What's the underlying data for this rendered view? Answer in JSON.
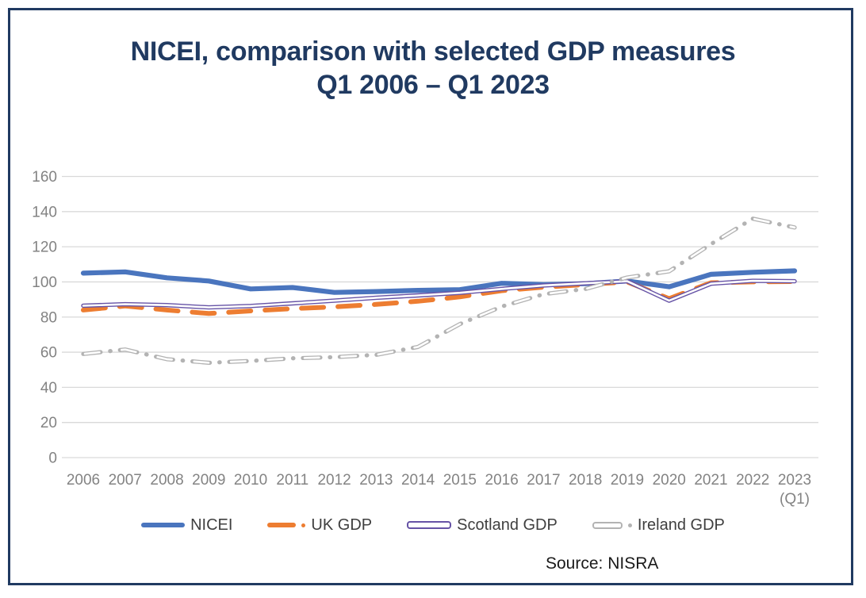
{
  "frame": {
    "title_line1": "NICEI, comparison with selected GDP measures",
    "title_line2": "Q1 2006 – Q1 2023",
    "source": "Source: NISRA"
  },
  "colors": {
    "border_navy": "#203A61",
    "title_navy": "#203A61",
    "gridline": "#D9D9D9",
    "axis_text": "#838383",
    "legend_text": "#3F3F3F",
    "nicei_blue": "#4A75BE",
    "uk_orange": "#ED7D31",
    "scotland_purple": "#6653A6",
    "ireland_gray": "#B3B3B3"
  },
  "chart_data": {
    "type": "line",
    "title": "NICEI, comparison with selected GDP measures Q1 2006 – Q1 2023",
    "xlabel": "",
    "ylabel": "",
    "x": [
      "2006",
      "2007",
      "2008",
      "2009",
      "2010",
      "2011",
      "2012",
      "2013",
      "2014",
      "2015",
      "2016",
      "2017",
      "2018",
      "2019",
      "2020",
      "2021",
      "2022",
      "2023"
    ],
    "x_last_suffix": "(Q1)",
    "ylim": [
      0,
      160
    ],
    "y_tick_step": 20,
    "grid": "horizontal",
    "legend_position": "bottom",
    "series": [
      {
        "name": "NICEI",
        "style": "solid-thick",
        "color": "#4A75BE",
        "values": [
          105,
          105.7,
          102.3,
          100.5,
          96,
          96.8,
          94,
          94.5,
          95.2,
          95.6,
          99.2,
          98.5,
          99,
          100.5,
          97.2,
          104.3,
          105.5,
          106.3
        ]
      },
      {
        "name": "UK GDP",
        "style": "dash",
        "color": "#ED7D31",
        "values": [
          84,
          86.3,
          84,
          82,
          83.5,
          84.8,
          85.8,
          87.2,
          89,
          91.5,
          95,
          97,
          98.5,
          100,
          90.5,
          99.5,
          100,
          100.2
        ]
      },
      {
        "name": "Scotland GDP",
        "style": "double-line",
        "color": "#6653A6",
        "values": [
          86.5,
          87.3,
          86.8,
          85.5,
          86.3,
          87.8,
          89.3,
          91,
          92.3,
          93.8,
          96,
          98,
          99.2,
          100.4,
          89.3,
          99,
          100.6,
          100.4
        ]
      },
      {
        "name": "Ireland GDP",
        "style": "hollow-dash-dot",
        "color": "#B3B3B3",
        "values": [
          59,
          61.5,
          56,
          54,
          55,
          56.5,
          57.2,
          58.5,
          63,
          76,
          86,
          93,
          96,
          102.5,
          106,
          121.5,
          136,
          131
        ]
      }
    ],
    "source": "Source: NISRA"
  }
}
